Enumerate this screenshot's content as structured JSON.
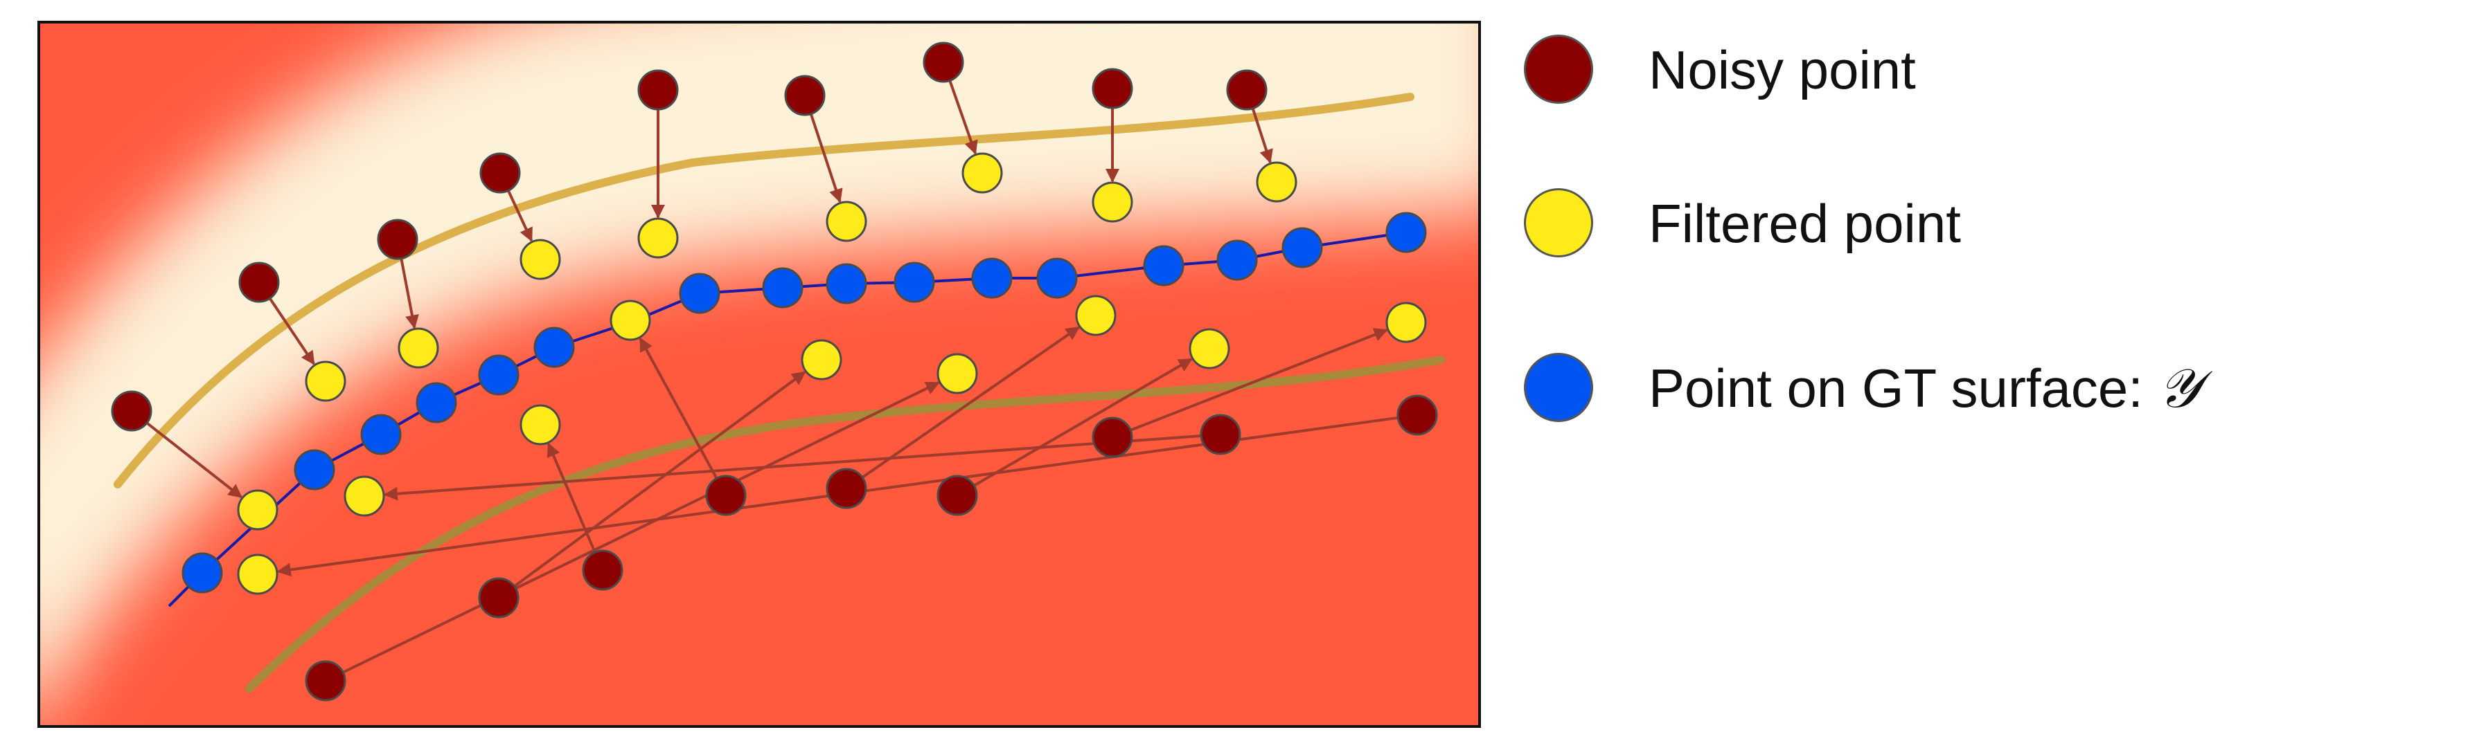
{
  "colors": {
    "noisy": "#8b0000",
    "filtered": "#ffeb1a",
    "gt": "#0055f2",
    "gt_line": "#1a1aa8",
    "arrow": "#9e3b2c",
    "band_upper": "#dcb04a",
    "band_lower": "#a88a3a",
    "background_far": "#ff5a3e",
    "background_near": "#fdf1d8",
    "frame": "#111111"
  },
  "legend": {
    "noisy_label": "Noisy point",
    "filtered_label": "Filtered point",
    "gt_label_prefix": "Point on GT surface: ",
    "gt_symbol": "𝒴"
  }
}
